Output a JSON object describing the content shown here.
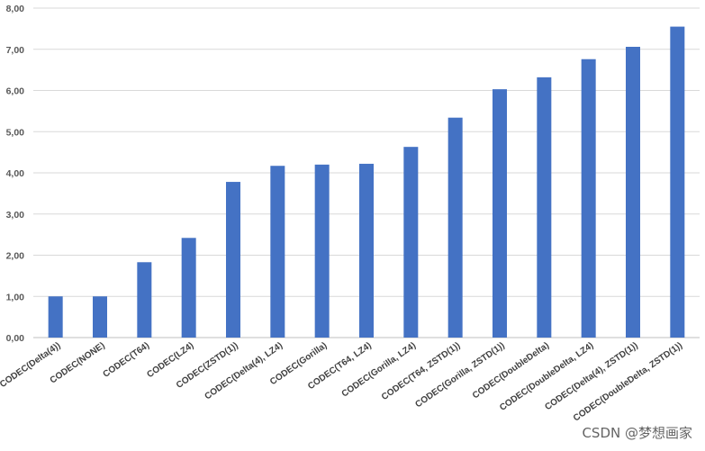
{
  "chart_data": {
    "type": "bar",
    "title": "",
    "xlabel": "",
    "ylabel": "",
    "ylim": [
      0,
      8
    ],
    "yticks": [
      "0,00",
      "1,00",
      "2,00",
      "3,00",
      "4,00",
      "5,00",
      "6,00",
      "7,00",
      "8,00"
    ],
    "grid": true,
    "legend": "none",
    "bar_color": "#4472C4",
    "categories": [
      "CODEC(Delta(4))",
      "CODEC(NONE)",
      "CODEC(T64)",
      "CODEC(LZ4)",
      "CODEC(ZSTD(1))",
      "CODEC(Delta(4), LZ4)",
      "CODEC(Gorilla)",
      "CODEC(T64, LZ4)",
      "CODEC(Gorilla, LZ4)",
      "CODEC(T64, ZSTD(1))",
      "CODEC(Gorilla, ZSTD(1))",
      "CODEC(DoubleDelta)",
      "CODEC(DoubleDelta, LZ4)",
      "CODEC(Delta(4), ZSTD(1))",
      "CODEC(DoubleDelta, ZSTD(1))"
    ],
    "values": [
      1.0,
      1.0,
      1.83,
      2.42,
      3.78,
      4.17,
      4.2,
      4.22,
      4.63,
      5.34,
      6.03,
      6.32,
      6.76,
      7.06,
      7.55
    ]
  },
  "watermark": "CSDN @梦想画家"
}
